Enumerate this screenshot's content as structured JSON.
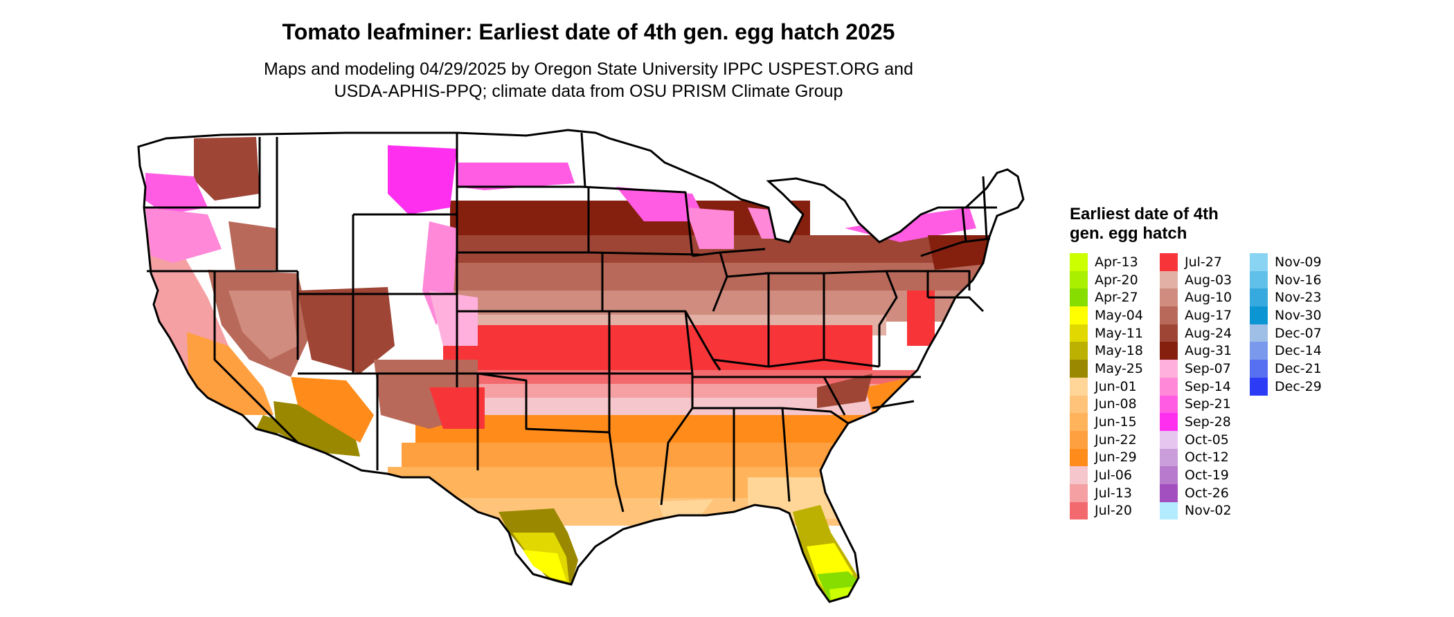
{
  "header": {
    "title": "Tomato leafminer: Earliest date of 4th gen. egg hatch 2025",
    "subtitle_line1": "Maps and modeling 04/29/2025 by Oregon State University IPPC USPEST.ORG and",
    "subtitle_line2": "USDA-APHIS-PPQ; climate data from OSU PRISM Climate Group"
  },
  "legend": {
    "title": "Earliest date of 4th gen. egg hatch",
    "columns": [
      [
        {
          "label": "Apr-13",
          "color": "#ccff00"
        },
        {
          "label": "Apr-20",
          "color": "#aaee00"
        },
        {
          "label": "Apr-27",
          "color": "#88dd00"
        },
        {
          "label": "May-04",
          "color": "#ffff00"
        },
        {
          "label": "May-11",
          "color": "#e0d800"
        },
        {
          "label": "May-18",
          "color": "#bcb000"
        },
        {
          "label": "May-25",
          "color": "#998800"
        },
        {
          "label": "Jun-01",
          "color": "#ffd698"
        },
        {
          "label": "Jun-08",
          "color": "#ffc47a"
        },
        {
          "label": "Jun-15",
          "color": "#ffb35a"
        },
        {
          "label": "Jun-22",
          "color": "#ffa040"
        },
        {
          "label": "Jun-29",
          "color": "#ff8c1a"
        },
        {
          "label": "Jul-06",
          "color": "#f5c6cb"
        },
        {
          "label": "Jul-13",
          "color": "#f5a0a3"
        },
        {
          "label": "Jul-20",
          "color": "#f26a6e"
        }
      ],
      [
        {
          "label": "Jul-27",
          "color": "#f73538"
        },
        {
          "label": "Aug-03",
          "color": "#e3b0a6"
        },
        {
          "label": "Aug-10",
          "color": "#cf8c7f"
        },
        {
          "label": "Aug-17",
          "color": "#b8695a"
        },
        {
          "label": "Aug-24",
          "color": "#9e4535"
        },
        {
          "label": "Aug-31",
          "color": "#85200f"
        },
        {
          "label": "Sep-07",
          "color": "#ffb0dc"
        },
        {
          "label": "Sep-14",
          "color": "#ff88d9"
        },
        {
          "label": "Sep-21",
          "color": "#ff5ce3"
        },
        {
          "label": "Sep-28",
          "color": "#ff2ff0"
        },
        {
          "label": "Oct-05",
          "color": "#e6c6ef"
        },
        {
          "label": "Oct-12",
          "color": "#ca9ddb"
        },
        {
          "label": "Oct-19",
          "color": "#b77acc"
        },
        {
          "label": "Oct-26",
          "color": "#a24fbf"
        },
        {
          "label": "Nov-02",
          "color": "#b3ecff"
        }
      ],
      [
        {
          "label": "Nov-09",
          "color": "#89d4f3"
        },
        {
          "label": "Nov-16",
          "color": "#60c0ea"
        },
        {
          "label": "Nov-23",
          "color": "#36aade"
        },
        {
          "label": "Nov-30",
          "color": "#0b96d3"
        },
        {
          "label": "Dec-07",
          "color": "#9fbfe6"
        },
        {
          "label": "Dec-14",
          "color": "#7a99ed"
        },
        {
          "label": "Dec-21",
          "color": "#5670f1"
        },
        {
          "label": "Dec-29",
          "color": "#2c3cf6"
        }
      ]
    ]
  },
  "map": {
    "region": "conterminous United States",
    "state_boundary_color": "#000000",
    "no_completion_color": "#ffffff",
    "zones": [
      {
        "area": "southern Florida tip",
        "color": "#88dd00"
      },
      {
        "area": "central Florida",
        "color": "#bcb000"
      },
      {
        "area": "south Texas",
        "color": "#e0d800"
      },
      {
        "area": "Gulf coast and Southeast",
        "color": "#ffb35a"
      },
      {
        "area": "southern Plains",
        "color": "#f73538"
      },
      {
        "area": "Corn Belt",
        "color": "#b8695a"
      },
      {
        "area": "upper Midwest",
        "color": "#85200f"
      },
      {
        "area": "northern Rockies",
        "color": "#ff5ce3"
      },
      {
        "area": "Arizona low desert",
        "color": "#998800"
      },
      {
        "area": "California Central Valley",
        "color": "#f5a0a3"
      }
    ]
  }
}
